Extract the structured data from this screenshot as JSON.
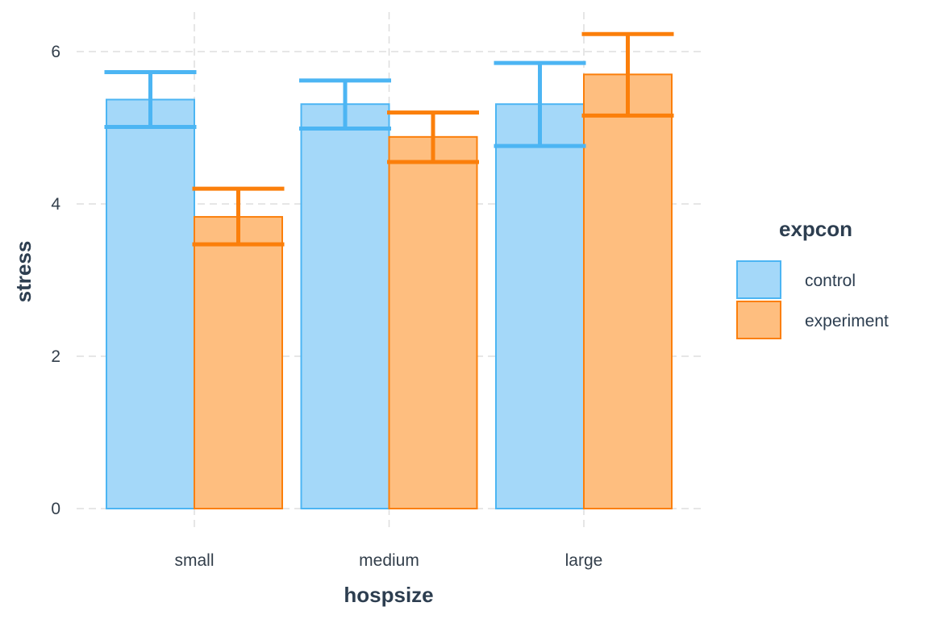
{
  "chart_data": {
    "type": "bar",
    "title": "",
    "xlabel": "hospsize",
    "ylabel": "stress",
    "categories": [
      "small",
      "medium",
      "large"
    ],
    "ylim": [
      -0.15,
      6.5
    ],
    "yticks": [
      0,
      2,
      4,
      6
    ],
    "grid": true,
    "legend": {
      "title": "expcon",
      "position": "right"
    },
    "series": [
      {
        "name": "control",
        "fill": "#a4d8f9",
        "stroke": "#4cb5f3",
        "values": [
          5.37,
          5.31,
          5.31
        ],
        "error_low": [
          5.01,
          4.99,
          4.76
        ],
        "error_high": [
          5.73,
          5.62,
          5.85
        ]
      },
      {
        "name": "experiment",
        "fill": "#febe7f",
        "stroke": "#fb7f0b",
        "values": [
          3.83,
          4.88,
          5.7
        ],
        "error_low": [
          3.47,
          4.55,
          5.16
        ],
        "error_high": [
          4.2,
          5.2,
          6.23
        ]
      }
    ]
  }
}
